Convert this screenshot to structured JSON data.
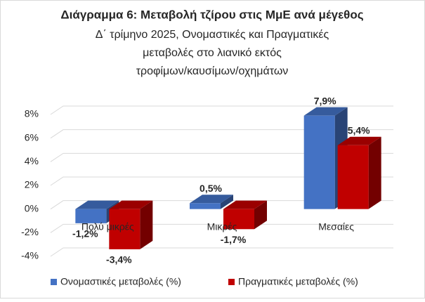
{
  "chart_data": {
    "type": "bar3d",
    "title": "Διάγραμμα 6: Μεταβολή τζίρου στις ΜμΕ ανά μέγεθος",
    "subtitle": [
      "Δ΄ τρίμηνο 2025, Ονομαστικές και Πραγματικές",
      "μεταβολές στο λιανικό εκτός",
      "τροφίμων/καυσίμων/οχημάτων"
    ],
    "categories": [
      "Πολύ μικρές",
      "Μικρές",
      "Μεσαίες"
    ],
    "series": [
      {
        "name": "Ονομαστικές μεταβολές (%)",
        "color": "#4472c4",
        "values": [
          -1.2,
          0.5,
          7.9
        ],
        "value_labels": [
          "-1,2%",
          "0,5%",
          "7,9%"
        ]
      },
      {
        "name": "Πραγματικές μεταβολές (%)",
        "color": "#c00000",
        "values": [
          -3.4,
          -1.7,
          5.4
        ],
        "value_labels": [
          "-3,4%",
          "-1,7%",
          "5,4%"
        ]
      }
    ],
    "ylim": [
      -4,
      8
    ],
    "yticks": [
      {
        "value": -4,
        "label": "-4%"
      },
      {
        "value": -2,
        "label": "-2%"
      },
      {
        "value": 0,
        "label": "0%"
      },
      {
        "value": 2,
        "label": "2%"
      },
      {
        "value": 4,
        "label": "4%"
      },
      {
        "value": 6,
        "label": "6%"
      },
      {
        "value": 8,
        "label": "8%"
      }
    ],
    "grid": true,
    "legend": "bottom"
  }
}
